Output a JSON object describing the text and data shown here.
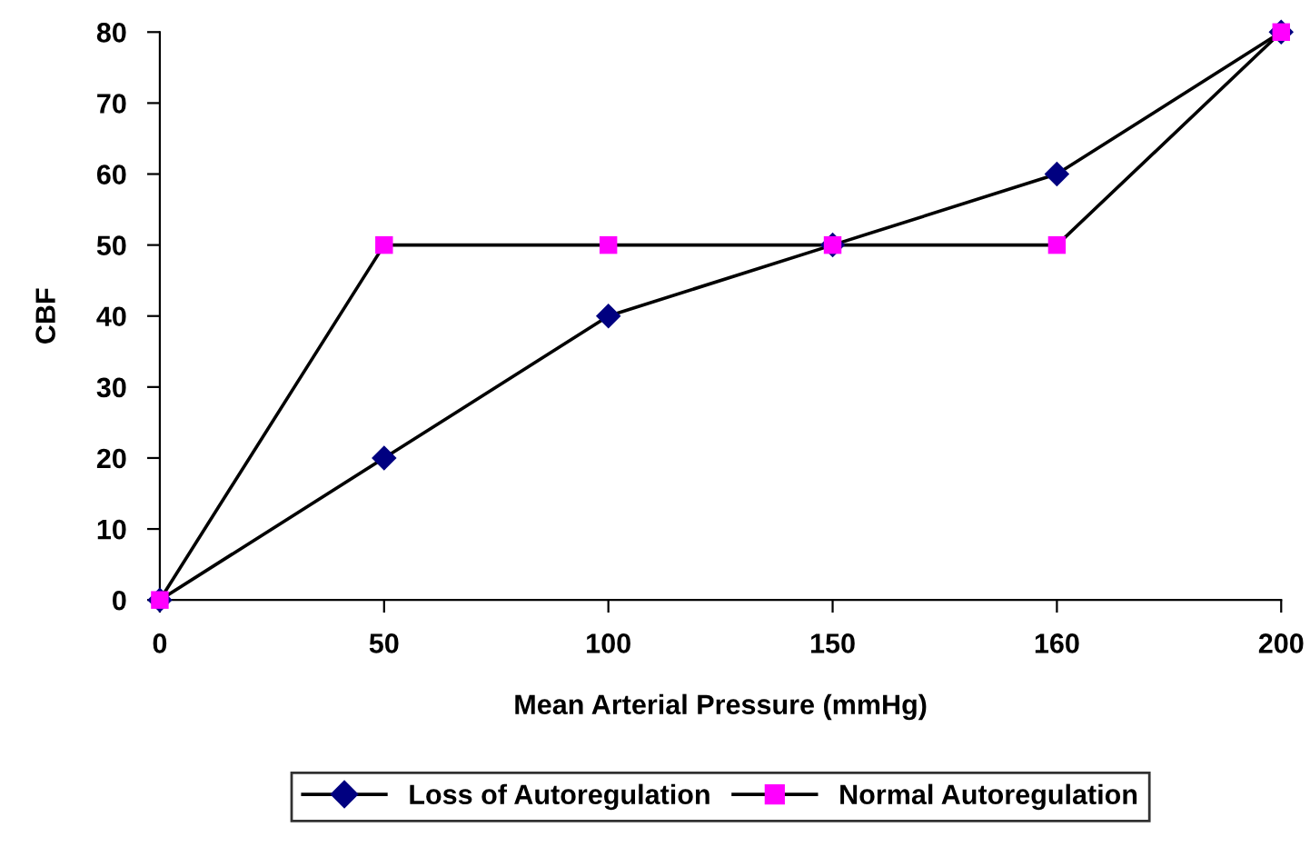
{
  "chart_data": {
    "type": "line",
    "xlabel": "Mean Arterial Pressure (mmHg)",
    "ylabel": "CBF",
    "categories": [
      "0",
      "50",
      "100",
      "150",
      "160",
      "200"
    ],
    "series": [
      {
        "name": "Loss of Autoregulation",
        "color": "#000000",
        "colors": [
          "#000080",
          "#000080",
          "#000080",
          "#000080",
          "#000080",
          "#000080"
        ],
        "marker": "diamond",
        "values": [
          0,
          20,
          40,
          50,
          60,
          80
        ]
      },
      {
        "name": "Normal Autoregulation",
        "color": "#000000",
        "colors": [
          "#ff00ff",
          "#ff00ff",
          "#ff00ff",
          "#ff00ff",
          "#ff00ff",
          "#ff00ff"
        ],
        "marker": "square",
        "values": [
          0,
          50,
          50,
          50,
          50,
          80
        ]
      }
    ],
    "ylim": [
      0,
      80
    ],
    "yticks": [
      0,
      10,
      20,
      30,
      40,
      50,
      60,
      70,
      80
    ],
    "grid": false,
    "legend": "bottom",
    "line_style": "solid"
  }
}
